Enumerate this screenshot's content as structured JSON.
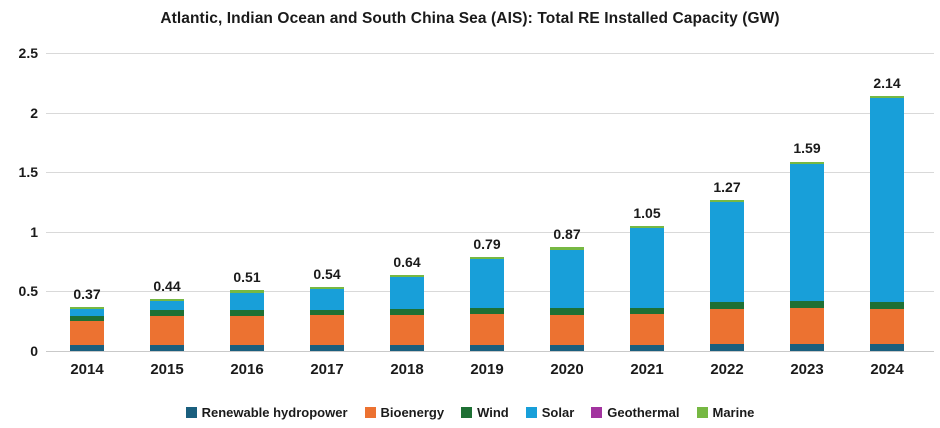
{
  "title": "Atlantic, Indian Ocean and South China Sea (AIS): Total RE Installed Capacity (GW)",
  "chart_data": {
    "type": "bar",
    "stacked": true,
    "title": "Atlantic, Indian Ocean and South China Sea (AIS): Total RE Installed Capacity (GW)",
    "categories": [
      "2014",
      "2015",
      "2016",
      "2017",
      "2018",
      "2019",
      "2020",
      "2021",
      "2022",
      "2023",
      "2024"
    ],
    "series": [
      {
        "name": "Renewable hydropower",
        "color": "#1a5f7e",
        "values": [
          0.05,
          0.05,
          0.05,
          0.05,
          0.05,
          0.05,
          0.05,
          0.05,
          0.06,
          0.06,
          0.06
        ]
      },
      {
        "name": "Bioenergy",
        "color": "#ec7231",
        "values": [
          0.2,
          0.24,
          0.24,
          0.25,
          0.25,
          0.26,
          0.25,
          0.26,
          0.29,
          0.3,
          0.29
        ]
      },
      {
        "name": "Wind",
        "color": "#1e7034",
        "values": [
          0.04,
          0.05,
          0.05,
          0.04,
          0.05,
          0.05,
          0.06,
          0.05,
          0.06,
          0.06,
          0.06
        ]
      },
      {
        "name": "Solar",
        "color": "#189fd9",
        "values": [
          0.06,
          0.08,
          0.15,
          0.18,
          0.27,
          0.41,
          0.49,
          0.67,
          0.84,
          1.15,
          1.71
        ]
      },
      {
        "name": "Geothermal",
        "color": "#a2339f",
        "values": [
          0,
          0,
          0,
          0,
          0,
          0,
          0,
          0,
          0,
          0,
          0
        ]
      },
      {
        "name": "Marine",
        "color": "#76b843",
        "values": [
          0.02,
          0.02,
          0.02,
          0.02,
          0.02,
          0.02,
          0.02,
          0.02,
          0.02,
          0.02,
          0.02
        ]
      }
    ],
    "totals": [
      0.37,
      0.44,
      0.51,
      0.54,
      0.64,
      0.79,
      0.87,
      1.05,
      1.27,
      1.59,
      2.14
    ],
    "total_labels": [
      "0.37",
      "0.44",
      "0.51",
      "0.54",
      "0.64",
      "0.79",
      "0.87",
      "1.05",
      "1.27",
      "1.59",
      "2.14"
    ],
    "xlabel": "",
    "ylabel": "",
    "ylim": [
      0,
      2.5
    ],
    "yticks": [
      "0",
      "0.5",
      "1",
      "1.5",
      "2",
      "2.5"
    ],
    "ytick_values": [
      0,
      0.5,
      1,
      1.5,
      2,
      2.5
    ],
    "grid": true,
    "legend_position": "bottom"
  },
  "colors": {
    "background": "#ffffff",
    "gridline": "#d9d9d9",
    "text": "#1a1a1a"
  }
}
